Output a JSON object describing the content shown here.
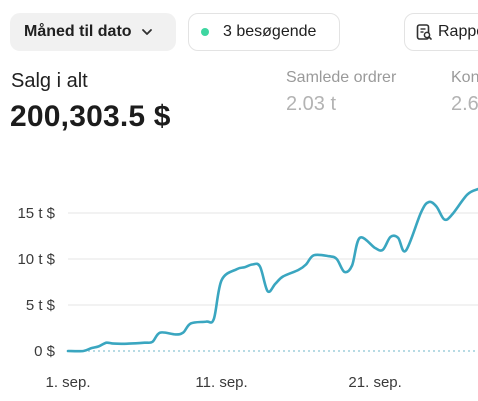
{
  "header": {
    "date_range_label": "Måned til dato",
    "visitors_label": "3 besøgende",
    "report_label": "Rapport",
    "visitors_dot_color": "#3ed6a1"
  },
  "metrics": {
    "total_sales": {
      "label": "Salg i alt",
      "value": "200,303.5 $"
    },
    "total_orders": {
      "label": "Samlede ordrer",
      "value": "2.03 t"
    },
    "conversion": {
      "label": "Konverteringsrate",
      "value": "2.6"
    }
  },
  "chart_data": {
    "type": "line",
    "title": "",
    "xlabel": "",
    "ylabel": "",
    "ylim": [
      0,
      17
    ],
    "y_ticks": [
      {
        "value": 0,
        "label": "0 $"
      },
      {
        "value": 5,
        "label": "5 t $"
      },
      {
        "value": 10,
        "label": "10 t $"
      },
      {
        "value": 15,
        "label": "15 t $"
      }
    ],
    "x_ticks": [
      {
        "day": 1,
        "label": "1. sep."
      },
      {
        "day": 11,
        "label": "11. sep."
      },
      {
        "day": 21,
        "label": "21. sep."
      }
    ],
    "xlim": [
      1,
      27.7
    ],
    "grid": true,
    "line_color": "#3aa6c0",
    "series": [
      {
        "values": [
          [
            1.0,
            0.0
          ],
          [
            2.0,
            0.0
          ],
          [
            2.5,
            0.3
          ],
          [
            3.0,
            0.5
          ],
          [
            3.5,
            0.9
          ],
          [
            4.0,
            0.8
          ],
          [
            5.0,
            0.8
          ],
          [
            6.0,
            0.9
          ],
          [
            6.5,
            1.0
          ],
          [
            7.0,
            2.0
          ],
          [
            8.0,
            1.8
          ],
          [
            8.5,
            2.0
          ],
          [
            9.0,
            3.0
          ],
          [
            10.0,
            3.2
          ],
          [
            10.5,
            3.5
          ],
          [
            11.0,
            7.7
          ],
          [
            12.0,
            8.9
          ],
          [
            12.5,
            9.1
          ],
          [
            13.0,
            9.4
          ],
          [
            13.5,
            9.2
          ],
          [
            14.0,
            6.5
          ],
          [
            14.5,
            7.3
          ],
          [
            15.0,
            8.1
          ],
          [
            16.0,
            8.8
          ],
          [
            16.5,
            9.4
          ],
          [
            17.0,
            10.4
          ],
          [
            18.0,
            10.3
          ],
          [
            18.5,
            10.0
          ],
          [
            19.0,
            8.6
          ],
          [
            19.5,
            9.3
          ],
          [
            20.0,
            12.3
          ],
          [
            21.0,
            11.2
          ],
          [
            21.5,
            11.0
          ],
          [
            22.0,
            12.4
          ],
          [
            22.5,
            12.3
          ],
          [
            23.0,
            10.9
          ],
          [
            24.0,
            15.1
          ],
          [
            24.5,
            16.2
          ],
          [
            25.0,
            15.7
          ],
          [
            25.5,
            14.3
          ],
          [
            26.0,
            14.8
          ],
          [
            27.0,
            17.0
          ],
          [
            27.7,
            17.6
          ]
        ]
      },
      {
        "name": "",
        "style": "dotted",
        "values": [
          [
            1.0,
            0.0
          ],
          [
            27.7,
            0.0
          ]
        ]
      }
    ]
  }
}
